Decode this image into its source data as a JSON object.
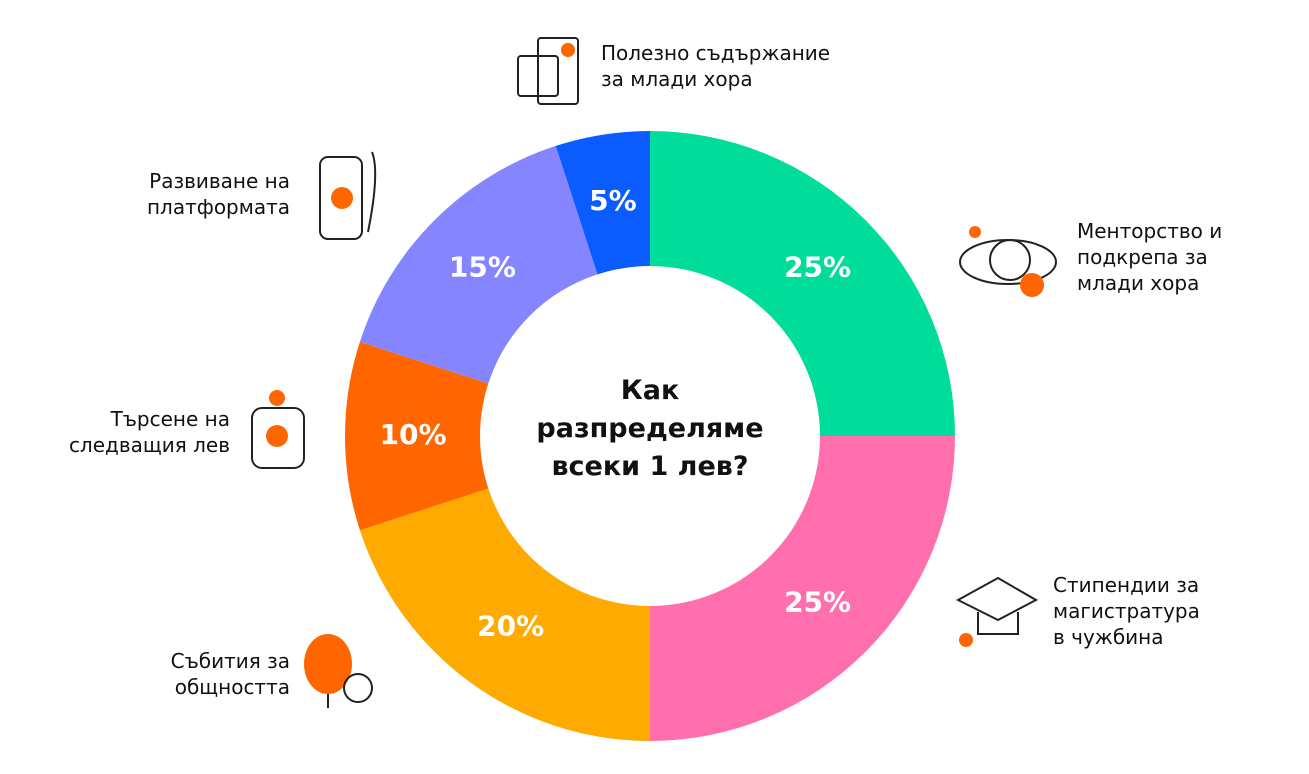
{
  "chart_data": {
    "type": "pie",
    "title": "Как разпределяме всеки 1 лев?",
    "categories": [
      "Менторство и\nподкрепа за\nмлади хора",
      "Стипендии за\nмагистратура\nв чужбина",
      "Събития за\nобщността",
      "Търсене на\nследващия лев",
      "Развиване на\nплатформата",
      "Полезно съдържание\nза млади хора"
    ],
    "values": [
      25,
      25,
      20,
      10,
      15,
      5
    ],
    "value_labels": [
      "25%",
      "25%",
      "20%",
      "10%",
      "15%",
      "5%"
    ],
    "colors": [
      "#00dc9a",
      "#ff6fae",
      "#ffaa00",
      "#ff6600",
      "#8585ff",
      "#0a5cff"
    ]
  }
}
